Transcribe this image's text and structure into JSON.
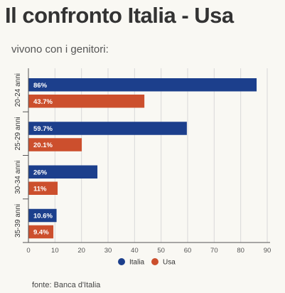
{
  "title": "Il confronto Italia - Usa",
  "subtitle": "vivono con i genitori:",
  "source": "fonte: Banca d'Italia",
  "colors": {
    "Italia": "#1c3f8c",
    "Usa": "#cc4f2d",
    "text": "#333333",
    "grid": "#d9d9d9",
    "axis": "#555555"
  },
  "chart_data": {
    "type": "bar",
    "orientation": "horizontal",
    "categories": [
      "20-24 anni",
      "25-29 anni",
      "30-34 anni",
      "35-39 anni"
    ],
    "series": [
      {
        "name": "Italia",
        "values": [
          86,
          59.7,
          26,
          10.6
        ],
        "labels": [
          "86%",
          "59.7%",
          "26%",
          "10.6%"
        ]
      },
      {
        "name": "Usa",
        "values": [
          43.7,
          20.1,
          11,
          9.4
        ],
        "labels": [
          "43.7%",
          "20.1%",
          "11%",
          "9.4%"
        ]
      }
    ],
    "xlim": [
      0,
      90
    ],
    "xticks": [
      0,
      10,
      20,
      30,
      40,
      50,
      60,
      70,
      80,
      90
    ],
    "grid": true,
    "legend": "bottom-center"
  }
}
